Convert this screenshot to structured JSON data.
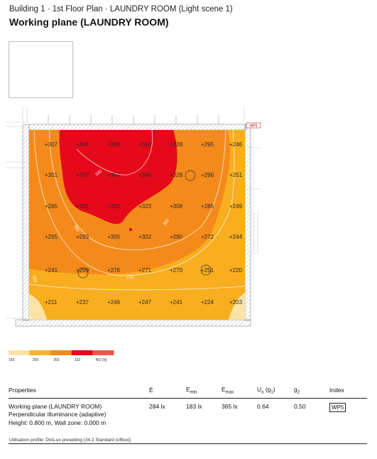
{
  "header": {
    "breadcrumb": "Building 1 · 1st Floor Plan · LAUNDRY ROOM (Light scene 1)",
    "title": "Working plane (LAUNDRY ROOM)"
  },
  "plan": {
    "wall_tag": "WP5",
    "grid_values": [
      [
        "307",
        "344",
        "359",
        "354",
        "328",
        "295",
        "246"
      ],
      [
        "301",
        "337",
        "357",
        "346",
        "328",
        "296",
        "251"
      ],
      [
        "285",
        "321",
        "331",
        "323",
        "308",
        "285",
        "249"
      ],
      [
        "265",
        "293",
        "305",
        "302",
        "290",
        "272",
        "244"
      ],
      [
        "241",
        "269",
        "276",
        "271",
        "270",
        "251",
        "220"
      ],
      [
        "211",
        "237",
        "246",
        "247",
        "241",
        "224",
        "203"
      ]
    ],
    "contour_labels": [
      "330",
      "300",
      "300",
      "270",
      "250"
    ]
  },
  "scale": {
    "ticks": [
      "168",
      "209",
      "260",
      "323",
      "402 [lx]"
    ],
    "colors": [
      "#fbe3a6",
      "#f7b32b",
      "#f08c1b",
      "#e5091a",
      "#ef5448"
    ]
  },
  "properties": {
    "headers": {
      "name": "Properties",
      "avg": "Ē",
      "min": "E",
      "min_sub": "min",
      "max": "E",
      "max_sub": "max",
      "uo": "U",
      "uo_sub": "o",
      "uo_suffix": " (g",
      "uo_sub2": "1",
      "uo_end": ")",
      "g2": "g",
      "g2_sub": "2",
      "index": "Index"
    },
    "row": {
      "name_line1": "Working plane (LAUNDRY ROOM)",
      "name_line2": "Perpendicular illuminance (adaptive)",
      "name_line3": "Height: 0.800 m, Wall zone: 0.000 m",
      "avg": "284 lx",
      "min": "183 lx",
      "max": "365 lx",
      "uo": "0.64",
      "g2": "0.50",
      "index": "WP5"
    }
  },
  "footnote": "Utilisation profile: DIALux presetting (34.2 Standard (office))"
}
